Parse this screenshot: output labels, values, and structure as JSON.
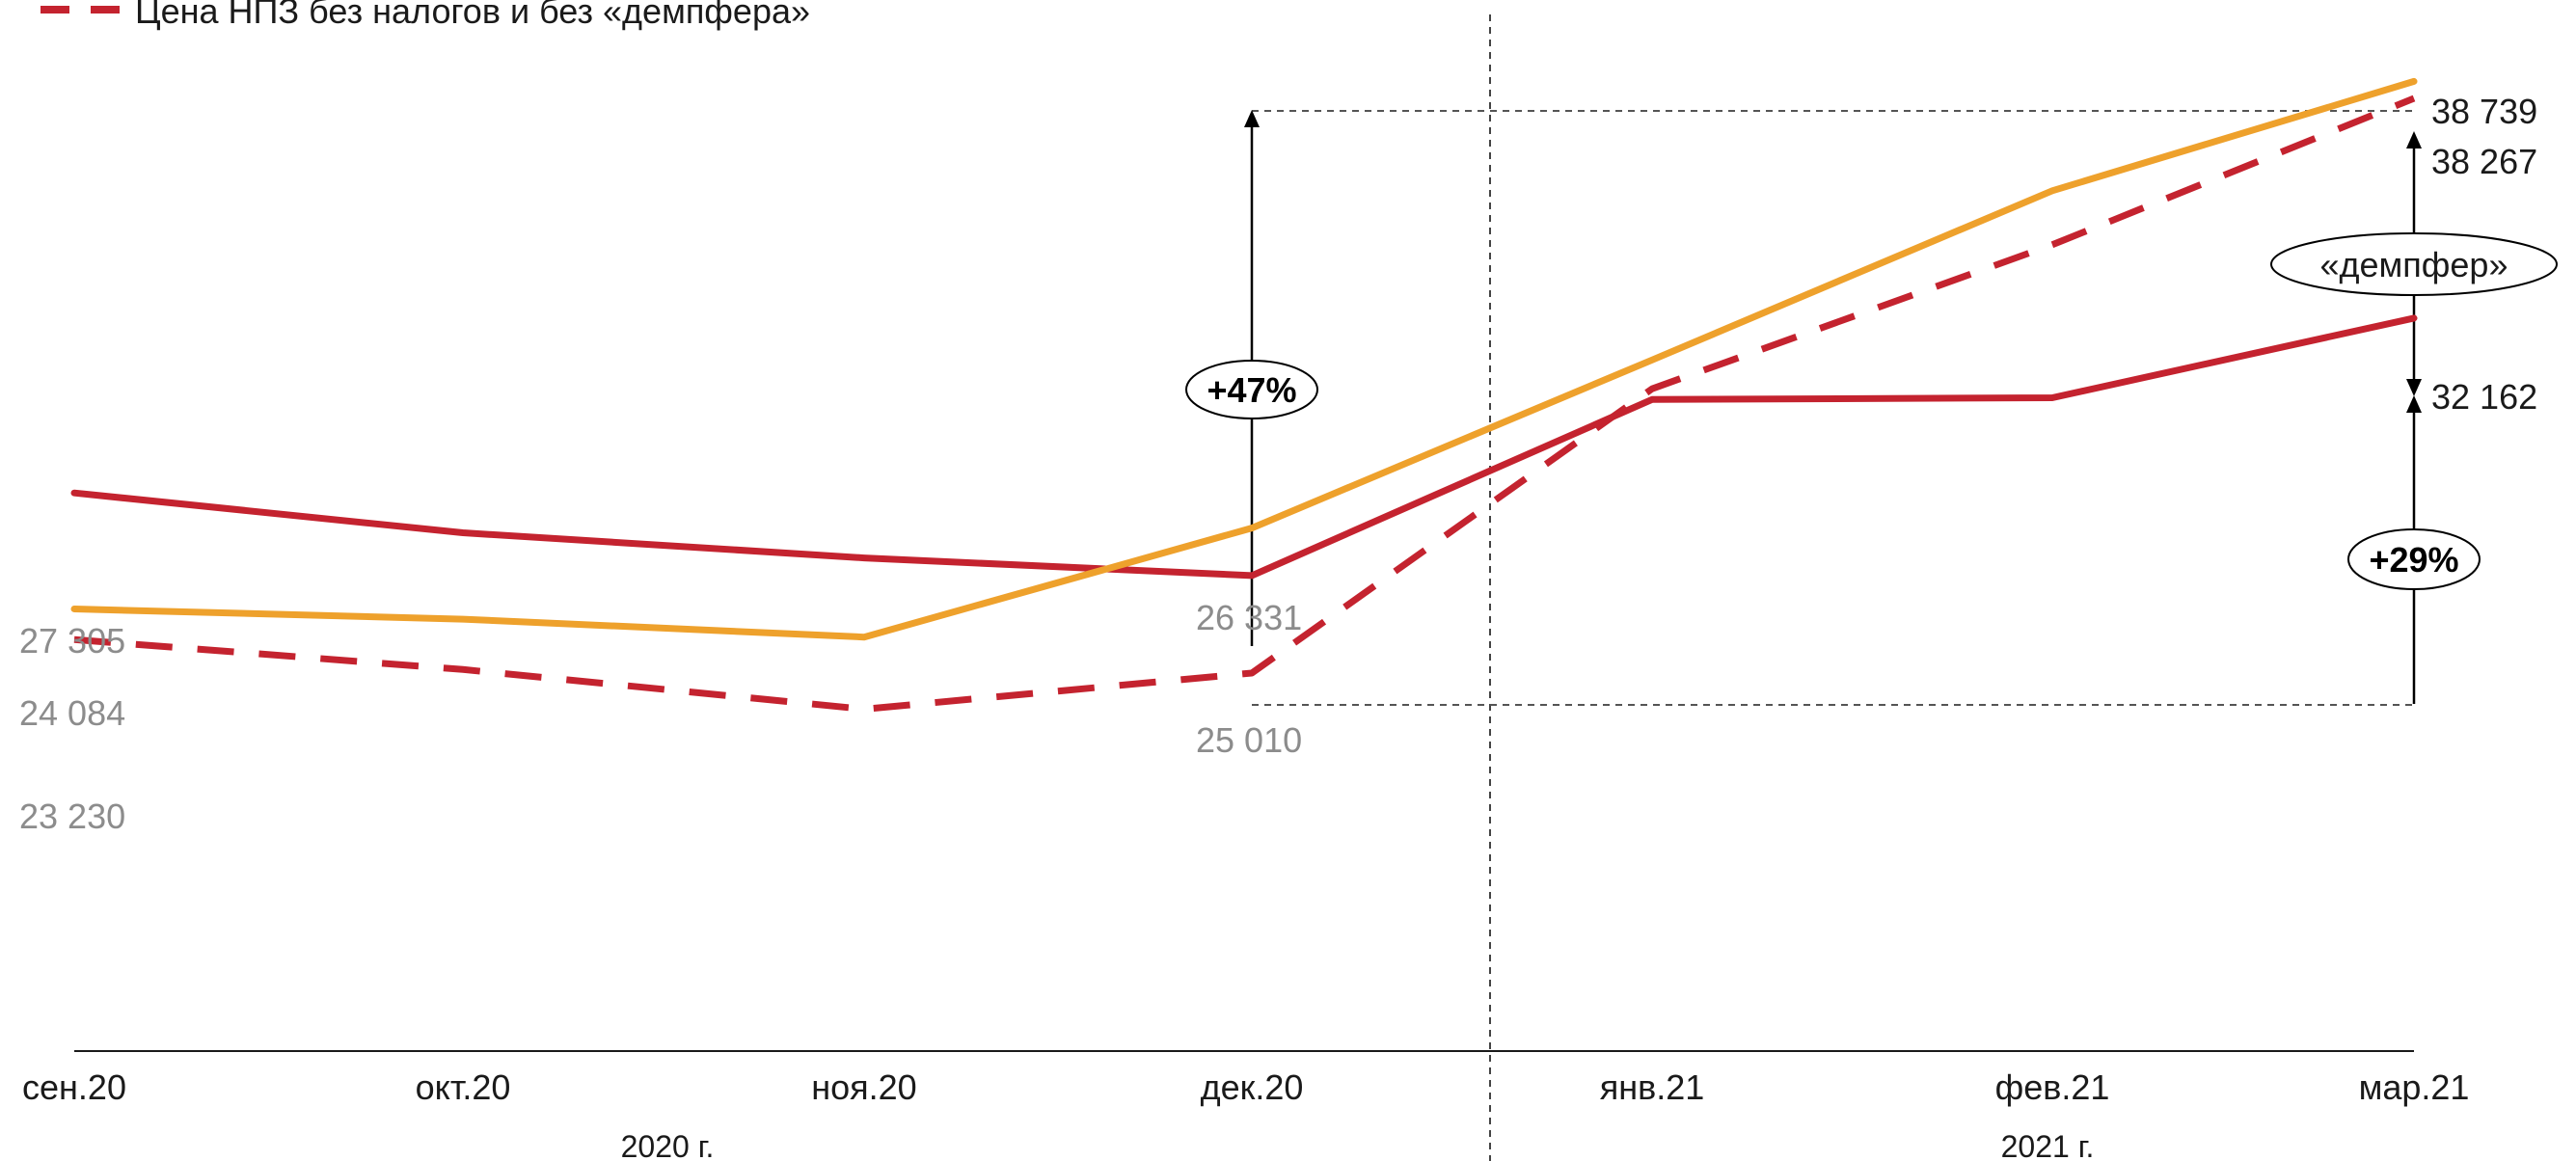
{
  "chart_data": {
    "type": "line",
    "title": "",
    "categories": [
      "сен.20",
      "окт.20",
      "ноя.20",
      "дек.20",
      "янв.21",
      "фев.21",
      "мар.21"
    ],
    "year_groups": [
      {
        "label": "2020 г.",
        "from": 0,
        "to": 3
      },
      {
        "label": "2021 г.",
        "from": 4,
        "to": 6
      }
    ],
    "ylim": [
      11800,
      41000
    ],
    "grid": false,
    "series": [
      {
        "name": "",
        "style": "solid",
        "color": "#c4232f",
        "values": [
          27305,
          26200,
          25500,
          25010,
          29900,
          29950,
          32162
        ]
      },
      {
        "name": "",
        "style": "solid",
        "color": "#eea12c",
        "values": [
          24084,
          23800,
          23300,
          26331,
          31000,
          35700,
          38739
        ]
      },
      {
        "name": "Цена НПЗ без налогов и без «демпфера»",
        "style": "dashed",
        "color": "#c4232f",
        "values": [
          23230,
          22400,
          21300,
          22300,
          30200,
          34200,
          38267
        ]
      }
    ],
    "start_labels": [
      "27 305",
      "24 084",
      "23 230"
    ],
    "dec_labels": [
      "26 331",
      "25 010"
    ],
    "end_labels": [
      "38 739",
      "38 267",
      "32 162"
    ],
    "annotations": {
      "growth_dec": "+47%",
      "growth_mar": "+29%",
      "damper": "«демпфер»"
    },
    "legend": {
      "position": "top-left",
      "entries": [
        "Цена НПЗ без налогов и без «демпфера»"
      ]
    }
  }
}
